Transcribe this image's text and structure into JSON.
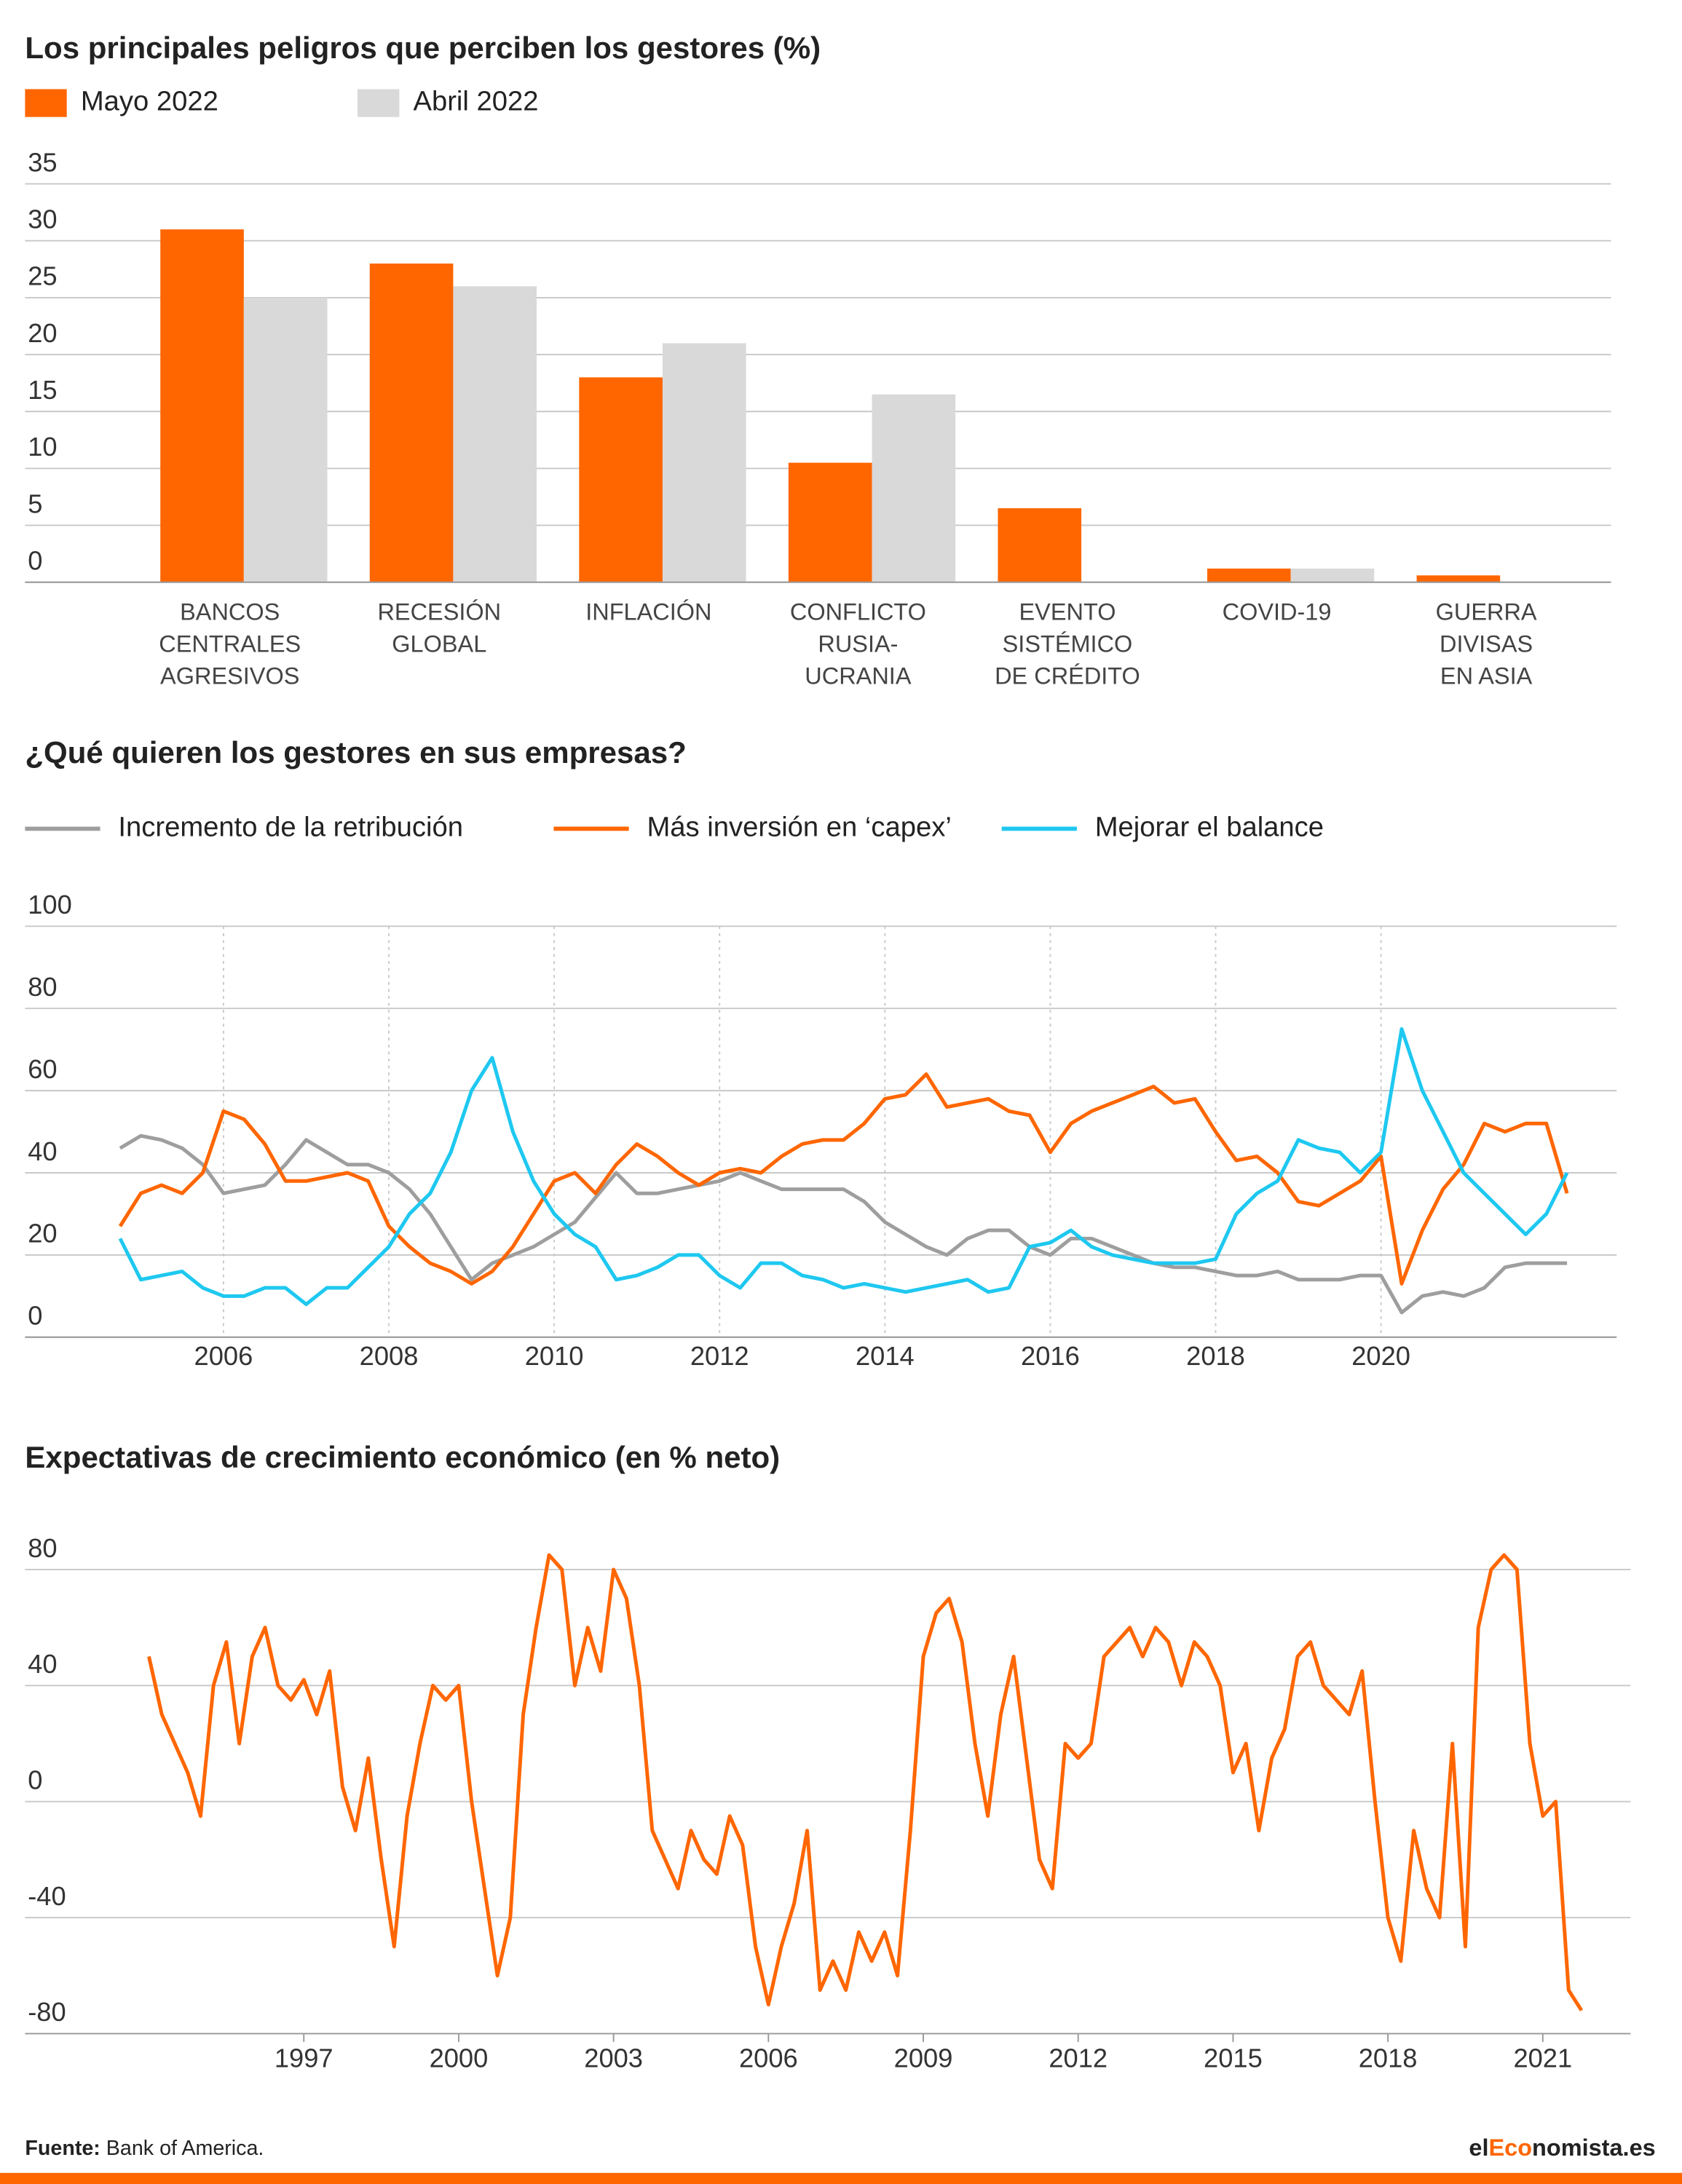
{
  "chart_data": [
    {
      "type": "bar",
      "title": "Los principales peligros que perciben los gestores (%)",
      "categories": [
        "BANCOS\nCENTRALES\nAGRESIVOS",
        "RECESIÓN\nGLOBAL",
        "INFLACIÓN",
        "CONFLICTO\nRUSIA-\nUCRANIA",
        "EVENTO\nSISTÉMICO\nDE CRÉDITO",
        "COVID-19",
        "GUERRA\nDIVISAS\nEN ASIA"
      ],
      "series": [
        {
          "name": "Mayo 2022",
          "color": "#ff6600",
          "values": [
            31,
            28,
            18,
            10.5,
            6.5,
            1.2,
            0.6
          ]
        },
        {
          "name": "Abril 2022",
          "color": "#d9d9d9",
          "values": [
            25,
            26,
            21,
            16.5,
            null,
            1.2,
            null
          ]
        }
      ],
      "ylim": [
        0,
        35
      ],
      "yticks": [
        0,
        5,
        10,
        15,
        20,
        25,
        30,
        35
      ],
      "grid": true
    },
    {
      "type": "line",
      "title": "¿Qué quieren los gestores en sus empresas?",
      "x": [
        2004.75,
        2005,
        2005.25,
        2005.5,
        2005.75,
        2006,
        2006.25,
        2006.5,
        2006.75,
        2007,
        2007.25,
        2007.5,
        2007.75,
        2008,
        2008.25,
        2008.5,
        2008.75,
        2009,
        2009.25,
        2009.5,
        2009.75,
        2010,
        2010.25,
        2010.5,
        2010.75,
        2011,
        2011.25,
        2011.5,
        2011.75,
        2012,
        2012.25,
        2012.5,
        2012.75,
        2013,
        2013.25,
        2013.5,
        2013.75,
        2014,
        2014.25,
        2014.5,
        2014.75,
        2015,
        2015.25,
        2015.5,
        2015.75,
        2016,
        2016.25,
        2016.5,
        2016.75,
        2017,
        2017.25,
        2017.5,
        2017.75,
        2018,
        2018.25,
        2018.5,
        2018.75,
        2019,
        2019.25,
        2019.5,
        2019.75,
        2020,
        2020.25,
        2020.5,
        2020.75,
        2021,
        2021.25,
        2021.5,
        2021.75,
        2022,
        2022.25
      ],
      "series": [
        {
          "name": "Incremento de la retribución",
          "color": "#9e9e9e",
          "values": [
            46,
            49,
            48,
            46,
            42,
            35,
            36,
            37,
            42,
            48,
            45,
            42,
            42,
            40,
            36,
            30,
            22,
            14,
            18,
            20,
            22,
            25,
            28,
            34,
            40,
            35,
            35,
            36,
            37,
            38,
            40,
            38,
            36,
            36,
            36,
            36,
            33,
            28,
            25,
            22,
            20,
            24,
            26,
            26,
            22,
            20,
            24,
            24,
            22,
            20,
            18,
            17,
            17,
            16,
            15,
            15,
            16,
            14,
            14,
            14,
            15,
            15,
            6,
            10,
            11,
            10,
            12,
            17,
            18,
            18,
            18
          ]
        },
        {
          "name": "Más inversión en ‘capex’",
          "color": "#ff6600",
          "values": [
            27,
            35,
            37,
            35,
            40,
            55,
            53,
            47,
            38,
            38,
            39,
            40,
            38,
            27,
            22,
            18,
            16,
            13,
            16,
            22,
            30,
            38,
            40,
            35,
            42,
            47,
            44,
            40,
            37,
            40,
            41,
            40,
            44,
            47,
            48,
            48,
            52,
            58,
            59,
            64,
            56,
            57,
            58,
            55,
            54,
            45,
            52,
            55,
            57,
            59,
            61,
            57,
            58,
            50,
            43,
            44,
            40,
            33,
            32,
            35,
            38,
            44,
            13,
            26,
            36,
            42,
            52,
            50,
            52,
            52,
            35
          ]
        },
        {
          "name": "Mejorar el balance",
          "color": "#1ec8f0",
          "values": [
            24,
            14,
            15,
            16,
            12,
            10,
            10,
            12,
            12,
            8,
            12,
            12,
            17,
            22,
            30,
            35,
            45,
            60,
            68,
            50,
            38,
            30,
            25,
            22,
            14,
            15,
            17,
            20,
            20,
            15,
            12,
            18,
            18,
            15,
            14,
            12,
            13,
            12,
            11,
            12,
            13,
            14,
            11,
            12,
            22,
            23,
            26,
            22,
            20,
            19,
            18,
            18,
            18,
            19,
            30,
            35,
            38,
            48,
            46,
            45,
            40,
            45,
            75,
            60,
            50,
            40,
            35,
            30,
            25,
            30,
            40
          ]
        }
      ],
      "xlim": [
        2003.6,
        2022.85
      ],
      "xticks": [
        2006,
        2008,
        2010,
        2012,
        2014,
        2016,
        2018,
        2020
      ],
      "ylim": [
        0,
        100
      ],
      "yticks": [
        0,
        20,
        40,
        60,
        80,
        100
      ],
      "grid": true
    },
    {
      "type": "line",
      "title": "Expectativas de crecimiento económico (en % neto)",
      "x": [
        1994,
        1994.25,
        1994.5,
        1994.75,
        1995,
        1995.25,
        1995.5,
        1995.75,
        1996,
        1996.25,
        1996.5,
        1996.75,
        1997,
        1997.25,
        1997.5,
        1997.75,
        1998,
        1998.25,
        1998.5,
        1998.75,
        1999,
        1999.25,
        1999.5,
        1999.75,
        2000,
        2000.25,
        2000.5,
        2000.75,
        2001,
        2001.25,
        2001.5,
        2001.75,
        2002,
        2002.25,
        2002.5,
        2002.75,
        2003,
        2003.25,
        2003.5,
        2003.75,
        2004,
        2004.25,
        2004.5,
        2004.75,
        2005,
        2005.25,
        2005.5,
        2005.75,
        2006,
        2006.25,
        2006.5,
        2006.75,
        2007,
        2007.25,
        2007.5,
        2007.75,
        2008,
        2008.25,
        2008.5,
        2008.75,
        2009,
        2009.25,
        2009.5,
        2009.75,
        2010,
        2010.25,
        2010.5,
        2010.75,
        2011,
        2011.25,
        2011.5,
        2011.75,
        2012,
        2012.25,
        2012.5,
        2012.75,
        2013,
        2013.25,
        2013.5,
        2013.75,
        2014,
        2014.25,
        2014.5,
        2014.75,
        2015,
        2015.25,
        2015.5,
        2015.75,
        2016,
        2016.25,
        2016.5,
        2016.75,
        2017,
        2017.25,
        2017.5,
        2017.75,
        2018,
        2018.25,
        2018.5,
        2018.75,
        2019,
        2019.25,
        2019.5,
        2019.75,
        2020,
        2020.25,
        2020.5,
        2020.75,
        2021,
        2021.25,
        2021.5,
        2021.75
      ],
      "series": [
        {
          "color": "#ff6600",
          "values": [
            50,
            30,
            20,
            10,
            -5,
            40,
            55,
            20,
            50,
            60,
            40,
            35,
            42,
            30,
            45,
            5,
            -10,
            15,
            -20,
            -50,
            -5,
            20,
            40,
            35,
            40,
            0,
            -30,
            -60,
            -40,
            30,
            60,
            85,
            80,
            40,
            60,
            45,
            80,
            70,
            40,
            -10,
            -20,
            -30,
            -10,
            -20,
            -25,
            -5,
            -15,
            -50,
            -70,
            -50,
            -35,
            -10,
            -65,
            -55,
            -65,
            -45,
            -55,
            -45,
            -60,
            -10,
            50,
            65,
            70,
            55,
            20,
            -5,
            30,
            50,
            15,
            -20,
            -30,
            20,
            15,
            20,
            50,
            55,
            60,
            50,
            60,
            55,
            40,
            55,
            50,
            40,
            10,
            20,
            -10,
            15,
            25,
            50,
            55,
            40,
            35,
            30,
            45,
            0,
            -40,
            -55,
            -10,
            -30,
            -40,
            20,
            -50,
            60,
            80,
            85,
            80,
            20,
            -5,
            0,
            -65,
            -72
          ]
        }
      ],
      "xlim": [
        1991.6,
        2022.7
      ],
      "xticks": [
        1997,
        2000,
        2003,
        2006,
        2009,
        2012,
        2015,
        2018,
        2021
      ],
      "ylim": [
        -80,
        90
      ],
      "yticks": [
        -80,
        -40,
        0,
        40,
        80
      ],
      "grid": true
    }
  ],
  "footer": {
    "source_label": "Fuente:",
    "source": "Bank of America.",
    "logo": [
      "el",
      "Eco",
      "nomista.es"
    ]
  }
}
